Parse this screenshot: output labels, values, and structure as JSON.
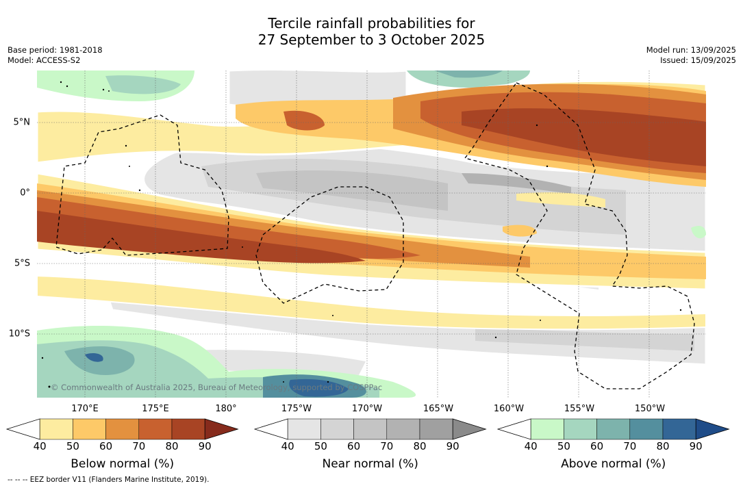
{
  "title_line1": "Tercile rainfall probabilities for",
  "title_line2": "27 September to 3 October 2025",
  "base_period": "Base period: 1981-2018",
  "model": "Model: ACCESS-S2",
  "model_run": "Model run: 13/09/2025",
  "issued": "Issued: 15/09/2025",
  "lon_labels": [
    "170°E",
    "175°E",
    "180°",
    "175°W",
    "170°W",
    "165°W",
    "160°W",
    "155°W",
    "150°W"
  ],
  "lat_labels": [
    "5°N",
    "0°",
    "5°S",
    "10°S"
  ],
  "copyright": "© Commonwealth of Australia 2025, Bureau of Meteorology, supported by COSPPac",
  "footer": "--  --  -- EEZ border V11 (Flanders Marine Institute, 2019).",
  "colorbars": [
    {
      "title": "Below normal (%)",
      "ticks": [
        "40",
        "50",
        "60",
        "70",
        "80",
        "90"
      ],
      "colors": [
        "#ffffff",
        "#fdeca0",
        "#fdc968",
        "#e3913f",
        "#c8612f",
        "#a84424",
        "#862b1c"
      ]
    },
    {
      "title": "Near normal (%)",
      "ticks": [
        "40",
        "50",
        "60",
        "70",
        "80",
        "90"
      ],
      "colors": [
        "#ffffff",
        "#e5e5e5",
        "#d4d4d4",
        "#c4c4c4",
        "#b2b2b2",
        "#a0a0a0",
        "#8a8a8a"
      ]
    },
    {
      "title": "Above normal (%)",
      "ticks": [
        "40",
        "50",
        "60",
        "70",
        "80",
        "90"
      ],
      "colors": [
        "#ffffff",
        "#c9f8c8",
        "#a5d6bf",
        "#7db3ac",
        "#548f9e",
        "#336696",
        "#1f4c88"
      ]
    }
  ]
}
